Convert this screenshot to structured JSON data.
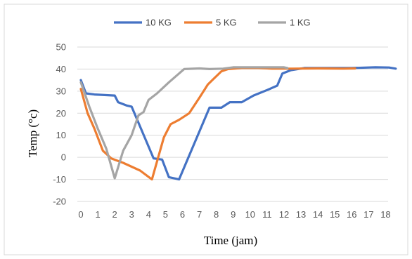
{
  "chart_data": {
    "type": "line",
    "title": "",
    "xlabel": "Time (jam)",
    "ylabel": "Temp (°c)",
    "xlim": [
      0,
      18.6
    ],
    "ylim": [
      -20,
      50
    ],
    "x_ticks": [
      0,
      1,
      2,
      3,
      4,
      5,
      6,
      7,
      8,
      9,
      10,
      11,
      12,
      13,
      14,
      15,
      16,
      17,
      18
    ],
    "y_ticks": [
      -20,
      -10,
      0,
      10,
      20,
      30,
      40,
      50
    ],
    "grid": "horizontal",
    "legend_position": "top",
    "series": [
      {
        "name": "10 KG",
        "color": "#4472c4",
        "points": [
          [
            0,
            35
          ],
          [
            0.3,
            29
          ],
          [
            0.8,
            28.5
          ],
          [
            2.0,
            28
          ],
          [
            2.2,
            25
          ],
          [
            2.7,
            23.5
          ],
          [
            3.0,
            23
          ],
          [
            4.3,
            -0.5
          ],
          [
            4.8,
            -1
          ],
          [
            5.2,
            -9
          ],
          [
            5.8,
            -10
          ],
          [
            7.6,
            22.5
          ],
          [
            8.3,
            22.5
          ],
          [
            8.8,
            25
          ],
          [
            9.5,
            25
          ],
          [
            10.2,
            28
          ],
          [
            11.0,
            30.5
          ],
          [
            11.6,
            32.5
          ],
          [
            11.9,
            38
          ],
          [
            12.4,
            39.5
          ],
          [
            13.2,
            40.5
          ],
          [
            14.0,
            40.5
          ],
          [
            16.0,
            40.5
          ],
          [
            17.4,
            40.8
          ],
          [
            18.2,
            40.7
          ],
          [
            18.6,
            40.2
          ]
        ]
      },
      {
        "name": "5 KG",
        "color": "#ed7d31",
        "points": [
          [
            0,
            31
          ],
          [
            0.4,
            20
          ],
          [
            0.8,
            13
          ],
          [
            1.3,
            3
          ],
          [
            1.8,
            -0.5
          ],
          [
            2.5,
            -2.5
          ],
          [
            3.5,
            -6
          ],
          [
            4.2,
            -10
          ],
          [
            4.9,
            9
          ],
          [
            5.3,
            15
          ],
          [
            5.8,
            17
          ],
          [
            6.4,
            20
          ],
          [
            7.0,
            27
          ],
          [
            7.5,
            33
          ],
          [
            7.9,
            36
          ],
          [
            8.3,
            39
          ],
          [
            8.7,
            40
          ],
          [
            9.5,
            40.5
          ],
          [
            10.5,
            40.5
          ],
          [
            11.3,
            40.2
          ],
          [
            12.5,
            40.2
          ],
          [
            14.0,
            40.3
          ],
          [
            15.5,
            40.2
          ],
          [
            16.2,
            40.3
          ]
        ]
      },
      {
        "name": "1 KG",
        "color": "#a5a5a5",
        "points": [
          [
            0,
            34
          ],
          [
            0.5,
            23
          ],
          [
            1.0,
            13
          ],
          [
            1.5,
            4
          ],
          [
            2.0,
            -9.5
          ],
          [
            2.5,
            3
          ],
          [
            3.0,
            10
          ],
          [
            3.4,
            19
          ],
          [
            3.7,
            20.5
          ],
          [
            4.0,
            26
          ],
          [
            4.5,
            29
          ],
          [
            5.2,
            34
          ],
          [
            5.8,
            38
          ],
          [
            6.1,
            40
          ],
          [
            7.0,
            40.3
          ],
          [
            7.6,
            40
          ],
          [
            8.4,
            40.2
          ],
          [
            9.0,
            40.8
          ],
          [
            10.5,
            40.8
          ],
          [
            12.0,
            40.8
          ],
          [
            12.2,
            40.5
          ]
        ]
      }
    ]
  }
}
